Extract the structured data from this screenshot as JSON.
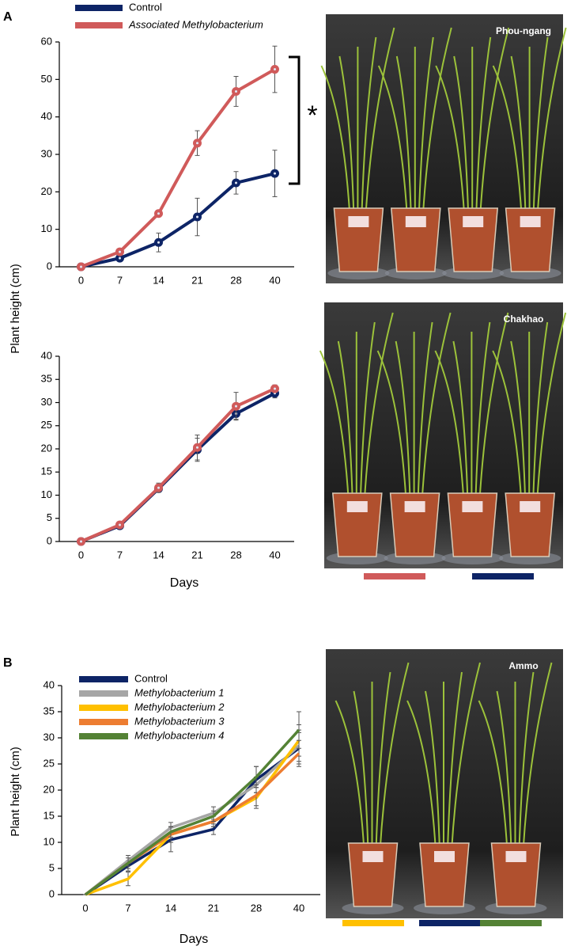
{
  "chart_data": [
    {
      "type": "line",
      "panel": "A",
      "ylabel": "Plant height (cm)",
      "annotation": "*",
      "categories": [
        "0",
        "7",
        "14",
        "21",
        "28",
        "40"
      ],
      "ylim": [
        0,
        60
      ],
      "yticks": [
        0,
        10,
        20,
        30,
        40,
        50,
        60
      ],
      "markers": true,
      "series": [
        {
          "name": "Control",
          "color": "#0d2466",
          "values": [
            0,
            2.3,
            6.5,
            13.3,
            22.4,
            24.9
          ],
          "errors": [
            0,
            0.5,
            2.5,
            5,
            3,
            6.2
          ]
        },
        {
          "name": "Associated Methylobacterium",
          "color": "#d05a5a",
          "values": [
            0,
            4,
            14.2,
            33,
            46.8,
            52.7
          ],
          "errors": [
            0,
            0.5,
            0.5,
            3.3,
            4,
            6.2
          ]
        }
      ]
    },
    {
      "type": "line",
      "xlabel": "Days",
      "categories": [
        "0",
        "7",
        "14",
        "21",
        "28",
        "40"
      ],
      "ylim": [
        0,
        40
      ],
      "yticks": [
        0,
        5,
        10,
        15,
        20,
        25,
        30,
        35,
        40
      ],
      "markers": true,
      "series": [
        {
          "color": "#0d2466",
          "values": [
            0,
            3.4,
            11.4,
            19.8,
            27.6,
            32.0
          ],
          "errors": [
            0,
            0.3,
            0.8,
            2.5,
            1.2,
            1
          ]
        },
        {
          "color": "#d05a5a",
          "values": [
            0,
            3.6,
            11.6,
            20.3,
            29.2,
            33.0
          ],
          "errors": [
            0,
            0.3,
            1,
            2.7,
            3,
            0.8
          ]
        }
      ]
    },
    {
      "type": "line",
      "panel": "B",
      "ylabel": "Plant height (cm)",
      "xlabel": "Days",
      "categories": [
        "0",
        "7",
        "14",
        "21",
        "28",
        "40"
      ],
      "ylim": [
        0,
        40
      ],
      "yticks": [
        0,
        5,
        10,
        15,
        20,
        25,
        30,
        35,
        40
      ],
      "markers": false,
      "series": [
        {
          "name": "Control",
          "color": "#0d2466",
          "values": [
            0,
            5.5,
            10.5,
            12.5,
            22,
            28
          ],
          "errors": [
            0,
            1,
            2.3,
            1,
            2.5,
            3
          ]
        },
        {
          "name": "Methylobacterium 1",
          "color": "#a6a6a6",
          "values": [
            0,
            6.5,
            12.8,
            15.6,
            21,
            28.5
          ],
          "errors": [
            0,
            1,
            1,
            1.2,
            1.5,
            3
          ]
        },
        {
          "name": "Methylobacterium 2",
          "color": "#ffc000",
          "values": [
            0,
            3,
            11.5,
            14,
            18.5,
            29.5
          ],
          "errors": [
            0,
            1.3,
            1.5,
            1,
            2,
            3
          ]
        },
        {
          "name": "Methylobacterium 3",
          "color": "#ed7d31",
          "values": [
            0,
            6,
            11.5,
            14,
            19,
            27
          ],
          "errors": [
            0,
            1.5,
            1.5,
            1,
            2,
            2.5
          ]
        },
        {
          "name": "Methylobacterium 4",
          "color": "#548235",
          "values": [
            0,
            6,
            12,
            15,
            22.5,
            31.5
          ],
          "errors": [
            0,
            1,
            1,
            1,
            2,
            3.5
          ]
        }
      ]
    }
  ],
  "photos": [
    "Phou-ngang",
    "Chakhao",
    "Ammo"
  ]
}
